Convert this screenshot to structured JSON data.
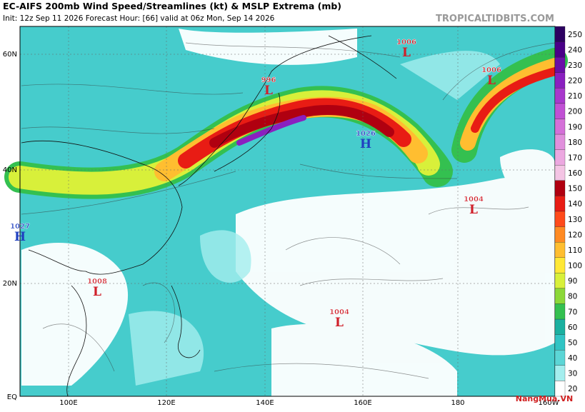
{
  "header": {
    "title": "EC-AIFS 200mb Wind Speed/Streamlines (kt) & MSLP Extrema (mb)",
    "subtitle": "Init: 12z Sep 11 2026   Forecast Hour: [66]   valid at 06z Mon, Sep 14 2026",
    "site": "TROPICALTIDBITS.COM"
  },
  "map": {
    "lon_labels": [
      "100E",
      "120E",
      "140E",
      "160E",
      "180",
      "160W"
    ],
    "lat_labels": [
      "60N",
      "40N",
      "20N",
      "EQ"
    ],
    "extrema": [
      {
        "pressure": "996",
        "symbol": "L",
        "color": "#d0202a"
      },
      {
        "pressure": "1006",
        "symbol": "L",
        "color": "#d0202a"
      },
      {
        "pressure": "1006",
        "symbol": "L",
        "color": "#d0202a"
      },
      {
        "pressure": "1026",
        "symbol": "H",
        "color": "#2040c0"
      },
      {
        "pressure": "1004",
        "symbol": "L",
        "color": "#d0202a"
      },
      {
        "pressure": "1027",
        "symbol": "H",
        "color": "#2040c0"
      },
      {
        "pressure": "1008",
        "symbol": "L",
        "color": "#d0202a"
      },
      {
        "pressure": "1004",
        "symbol": "L",
        "color": "#d0202a"
      }
    ]
  },
  "colorbar": [
    {
      "value": 250,
      "color": "#2c0060"
    },
    {
      "value": 240,
      "color": "#4a0088"
    },
    {
      "value": 230,
      "color": "#6a10a8"
    },
    {
      "value": 220,
      "color": "#8a20c0"
    },
    {
      "value": 210,
      "color": "#a838cc"
    },
    {
      "value": 200,
      "color": "#c050d4"
    },
    {
      "value": 190,
      "color": "#d470d8"
    },
    {
      "value": 180,
      "color": "#e090dc"
    },
    {
      "value": 170,
      "color": "#eca8e0"
    },
    {
      "value": 160,
      "color": "#f4c4e4"
    },
    {
      "value": 150,
      "color": "#b00010"
    },
    {
      "value": 140,
      "color": "#e81c14"
    },
    {
      "value": 130,
      "color": "#ff4a1a"
    },
    {
      "value": 120,
      "color": "#ff8a22"
    },
    {
      "value": 110,
      "color": "#ffbe30"
    },
    {
      "value": 100,
      "color": "#ffe836"
    },
    {
      "value": 90,
      "color": "#d8f03a"
    },
    {
      "value": 80,
      "color": "#8cd838"
    },
    {
      "value": 70,
      "color": "#34c050"
    },
    {
      "value": 60,
      "color": "#1ab0a0"
    },
    {
      "value": 50,
      "color": "#30c4c4"
    },
    {
      "value": 40,
      "color": "#5cd6d6"
    },
    {
      "value": 30,
      "color": "#a4eeee"
    },
    {
      "value": 20,
      "color": "#ffffff"
    }
  ],
  "watermark": "NangMua.VN"
}
